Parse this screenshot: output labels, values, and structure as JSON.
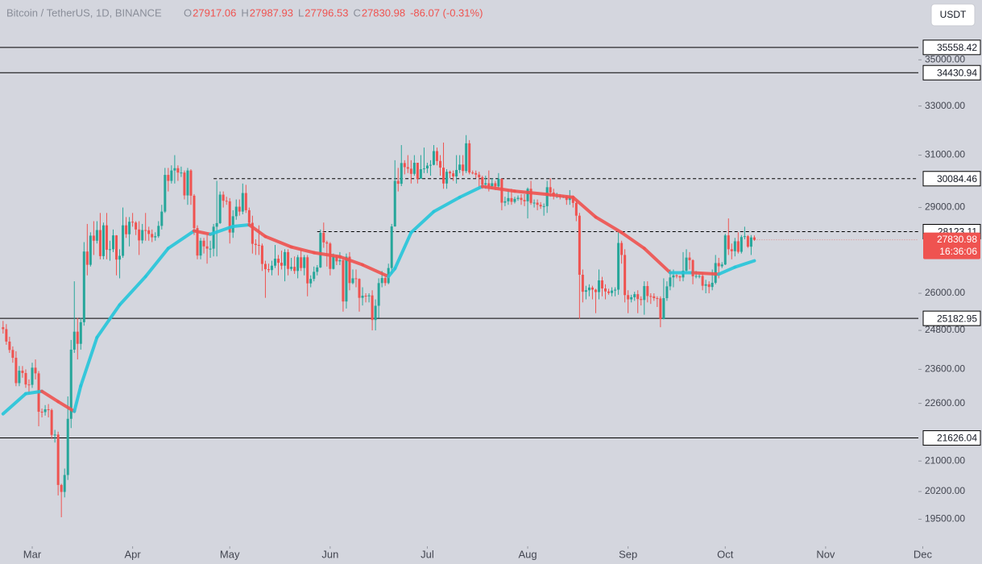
{
  "chart_data": {
    "type": "candlestick",
    "title": "Bitcoin / TetherUS, 1D, BINANCE",
    "ohlc_header": [
      {
        "name": "O",
        "text": "27917.06"
      },
      {
        "name": "H",
        "text": "27987.93"
      },
      {
        "name": "L",
        "text": "27796.53"
      },
      {
        "name": "C",
        "text": "27830.98"
      }
    ],
    "change": "-86.07 (-0.31%)",
    "currency_button": "USDT",
    "countdown": "16:36:06",
    "log_scale": true,
    "ylim": [
      18840,
      37770
    ],
    "yticks": [
      {
        "value": 35000,
        "label": "35000.00"
      },
      {
        "value": 33000,
        "label": "33000.00"
      },
      {
        "value": 31000,
        "label": "31000.00"
      },
      {
        "value": 29000,
        "label": "29000.00"
      },
      {
        "value": 26000,
        "label": "26000.00"
      },
      {
        "value": 24800,
        "label": "24800.00"
      },
      {
        "value": 23600,
        "label": "23600.00"
      },
      {
        "value": 22600,
        "label": "22600.00"
      },
      {
        "value": 21000,
        "label": "21000.00"
      },
      {
        "value": 20200,
        "label": "20200.00"
      },
      {
        "value": 19500,
        "label": "19500.00"
      }
    ],
    "xlim": [
      -0.95,
      285
    ],
    "xticks": [
      {
        "value": 9,
        "label": "Mar"
      },
      {
        "value": 40,
        "label": "Apr"
      },
      {
        "value": 70,
        "label": "May"
      },
      {
        "value": 101,
        "label": "Jun"
      },
      {
        "value": 131,
        "label": "Jul"
      },
      {
        "value": 162,
        "label": "Aug"
      },
      {
        "value": 193,
        "label": "Sep"
      },
      {
        "value": 223,
        "label": "Oct"
      },
      {
        "value": 254,
        "label": "Nov"
      },
      {
        "value": 284,
        "label": "Dec"
      }
    ],
    "up_color": "#26a69a",
    "down_color": "#ef5350",
    "open": [
      24900,
      24840,
      24450,
      24190,
      23950,
      23190,
      23560,
      23490,
      23150,
      23140,
      23650,
      23480,
      22360,
      22350,
      22430,
      22410,
      21710,
      21720,
      20370,
      20190,
      20630,
      22160,
      24200,
      24760,
      24380,
      25060,
      27420,
      26960,
      27980,
      27800,
      28180,
      27260,
      28350,
      27480,
      27500,
      27990,
      27140,
      27270,
      28350,
      28030,
      28480,
      28450,
      28200,
      27810,
      28180,
      28170,
      28040,
      27920,
      27960,
      28330,
      28850,
      30230,
      30000,
      30400,
      30490,
      30320,
      30320,
      29450,
      30400,
      29440,
      28250,
      27280,
      27800,
      27600,
      27520,
      27520,
      28300,
      28430,
      29480,
      29250,
      29230,
      28090,
      28680,
      29030,
      28850,
      29540,
      28900,
      28440,
      27690,
      27650,
      27630,
      26990,
      26810,
      26780,
      26930,
      27170,
      27030,
      26930,
      27400,
      26820,
      26890,
      26750,
      27220,
      26850,
      27220,
      26330,
      26480,
      26720,
      26870,
      28080,
      27740,
      27700,
      26820,
      27250,
      27080,
      27120,
      25730,
      27240,
      26340,
      26500,
      26480,
      25850,
      25920,
      25900,
      25930,
      25130,
      25590,
      26340,
      26510,
      26340,
      26850,
      28310,
      30000,
      29890,
      30690,
      30530,
      30470,
      30270,
      30700,
      30080,
      30450,
      30480,
      30590,
      30620,
      31160,
      30770,
      30510,
      29900,
      30350,
      30290,
      30170,
      30420,
      30630,
      30380,
      31470,
      30320,
      30300,
      30240,
      30140,
      29860,
      29910,
      29800,
      29910,
      29790,
      30080,
      29180,
      29230,
      29350,
      29210,
      29320,
      29360,
      29280,
      29230,
      29700,
      29170,
      29180,
      29100,
      29040,
      29050,
      29760,
      29560,
      29430,
      29430,
      29400,
      29410,
      29280,
      29400,
      29170,
      28700,
      26620,
      26050,
      26100,
      26190,
      26120,
      26040,
      26430,
      26160,
      26060,
      26010,
      26090,
      26120,
      27720,
      27300,
      25940,
      25800,
      25870,
      25970,
      25810,
      25780,
      26240,
      25910,
      25900,
      25840,
      25830,
      25160,
      25840,
      26230,
      26530,
      26600,
      26570,
      26530,
      26760,
      27210,
      27120,
      26570,
      26580,
      26580,
      26250,
      26300,
      26210,
      26350,
      27020,
      26910,
      26970,
      27990,
      27500,
      27430,
      27780,
      27410,
      27930,
      27960,
      27590,
      27917.06
    ],
    "high": [
      25100,
      25000,
      24600,
      24300,
      24150,
      23700,
      23700,
      23600,
      23300,
      23800,
      23900,
      23550,
      22450,
      22550,
      22580,
      22450,
      21850,
      21800,
      20400,
      20800,
      22800,
      24500,
      26400,
      25200,
      25200,
      27750,
      28400,
      28100,
      28500,
      28500,
      28800,
      28450,
      28800,
      27800,
      28200,
      28000,
      27500,
      29000,
      28650,
      28650,
      28800,
      28500,
      28500,
      28400,
      28800,
      28300,
      28200,
      28100,
      28500,
      29100,
      30500,
      30500,
      30600,
      31000,
      30600,
      30550,
      30400,
      30500,
      30450,
      29500,
      28350,
      27900,
      27900,
      28000,
      27800,
      28400,
      30000,
      29600,
      29600,
      29400,
      29350,
      28900,
      29300,
      29300,
      29900,
      29850,
      29000,
      28700,
      27850,
      28350,
      27700,
      27100,
      27000,
      27100,
      27650,
      27300,
      27450,
      27500,
      27500,
      27200,
      27250,
      27300,
      27500,
      27300,
      27300,
      26600,
      26900,
      26950,
      28200,
      28450,
      27800,
      27750,
      27350,
      27300,
      27400,
      27200,
      27350,
      27400,
      26800,
      26800,
      26500,
      26200,
      26000,
      26000,
      26100,
      25800,
      26500,
      26750,
      26550,
      27000,
      28400,
      30800,
      30500,
      31400,
      30800,
      31000,
      30800,
      31000,
      30700,
      31000,
      31300,
      30700,
      30800,
      31400,
      31300,
      31000,
      31500,
      30450,
      30400,
      30400,
      31000,
      31000,
      31000,
      31800,
      31600,
      30400,
      30400,
      30350,
      30200,
      30200,
      30400,
      30100,
      30000,
      30300,
      30100,
      29400,
      29650,
      29700,
      29400,
      29450,
      29500,
      29500,
      29750,
      30000,
      29300,
      29300,
      29200,
      29150,
      30000,
      30100,
      29700,
      29550,
      29500,
      29450,
      29450,
      29650,
      29450,
      29250,
      28800,
      26800,
      26250,
      26300,
      26250,
      26150,
      26800,
      26550,
      26300,
      26150,
      26200,
      26200,
      28150,
      27800,
      27500,
      26100,
      25950,
      26050,
      26100,
      25900,
      26400,
      26400,
      26000,
      26000,
      25900,
      25900,
      26500,
      26400,
      26800,
      26800,
      26650,
      26600,
      27400,
      27500,
      27400,
      27150,
      26750,
      26650,
      26700,
      26450,
      26400,
      26800,
      27300,
      27200,
      27050,
      28050,
      28600,
      27700,
      27900,
      28100,
      28000,
      28300,
      28000,
      28000,
      27987.93
    ],
    "low": [
      24700,
      24350,
      24100,
      23800,
      23100,
      23100,
      23350,
      23050,
      22850,
      23050,
      23300,
      21950,
      22200,
      22250,
      22200,
      21600,
      21500,
      20100,
      19550,
      20050,
      20500,
      21900,
      24100,
      23900,
      24200,
      24950,
      26600,
      26900,
      27300,
      27700,
      27150,
      27150,
      27150,
      27100,
      27400,
      26600,
      26500,
      27200,
      27900,
      27600,
      28300,
      28000,
      27300,
      27700,
      27800,
      27800,
      27750,
      27800,
      27900,
      28200,
      28800,
      29600,
      29900,
      29900,
      30000,
      30150,
      29300,
      29100,
      29100,
      28000,
      27150,
      27150,
      27350,
      27000,
      27200,
      27250,
      27250,
      28400,
      29000,
      29100,
      27700,
      27900,
      28550,
      28700,
      28750,
      28800,
      28300,
      27350,
      27300,
      27300,
      26750,
      25850,
      26700,
      26600,
      26850,
      26600,
      26800,
      26400,
      26600,
      26750,
      26650,
      26500,
      26750,
      26600,
      25900,
      26200,
      26400,
      26600,
      26850,
      27550,
      26900,
      26600,
      26800,
      26950,
      26950,
      25400,
      25500,
      26100,
      26300,
      26200,
      25400,
      25600,
      25700,
      25700,
      24800,
      24800,
      25200,
      26200,
      26250,
      26300,
      26650,
      28300,
      29600,
      29800,
      30250,
      30300,
      29900,
      30200,
      29900,
      30100,
      30300,
      30300,
      30200,
      30600,
      30600,
      30200,
      29700,
      29700,
      30100,
      30000,
      29900,
      30300,
      30200,
      30300,
      30250,
      30250,
      30100,
      29700,
      29700,
      29700,
      29600,
      29700,
      29650,
      29700,
      28900,
      29050,
      29100,
      29100,
      29150,
      29250,
      29100,
      29050,
      28600,
      29100,
      29000,
      28900,
      28950,
      28700,
      28800,
      29400,
      29300,
      29350,
      29300,
      29350,
      29100,
      29100,
      29000,
      28500,
      25170,
      25700,
      25800,
      25900,
      25800,
      25350,
      25800,
      25900,
      25800,
      25950,
      25900,
      25900,
      25950,
      27000,
      25700,
      25350,
      25700,
      25750,
      25350,
      25600,
      25300,
      25700,
      25650,
      25750,
      25550,
      24900,
      25150,
      25750,
      26100,
      26200,
      26500,
      26400,
      26400,
      26700,
      26800,
      26300,
      26500,
      26500,
      26100,
      26000,
      26000,
      26100,
      26300,
      26500,
      26850,
      26950,
      27300,
      27150,
      27250,
      27350,
      27350,
      27850,
      27550,
      27300,
      27796.53
    ],
    "close": [
      24840,
      24450,
      24190,
      23950,
      23190,
      23560,
      23490,
      23150,
      23140,
      23650,
      23480,
      22360,
      22350,
      22430,
      22410,
      21710,
      21720,
      20370,
      20190,
      20630,
      22160,
      24200,
      24760,
      24380,
      25060,
      27420,
      26960,
      27980,
      27800,
      28180,
      27260,
      28350,
      27480,
      27500,
      27990,
      27140,
      27270,
      28350,
      28030,
      28480,
      28450,
      28200,
      27810,
      28180,
      28170,
      28040,
      27920,
      27960,
      28330,
      28850,
      30230,
      30000,
      30400,
      30490,
      30320,
      30320,
      29450,
      30400,
      29440,
      28250,
      27280,
      27800,
      27600,
      27520,
      27520,
      28300,
      28430,
      29480,
      29250,
      29230,
      28090,
      28680,
      29030,
      28850,
      29540,
      28900,
      28440,
      27690,
      27650,
      27630,
      26990,
      26810,
      26780,
      26930,
      27170,
      27030,
      26930,
      27400,
      26820,
      26890,
      26750,
      27220,
      26850,
      27220,
      26330,
      26480,
      26720,
      26870,
      28080,
      27740,
      27700,
      26820,
      27250,
      27080,
      27120,
      25730,
      27240,
      26340,
      26500,
      26480,
      25850,
      25920,
      25900,
      25930,
      25130,
      25590,
      26340,
      26510,
      26340,
      26850,
      28310,
      30000,
      29890,
      30690,
      30530,
      30470,
      30270,
      30700,
      30080,
      30450,
      30480,
      30590,
      30620,
      31160,
      30770,
      30510,
      29900,
      30350,
      30290,
      30170,
      30420,
      30630,
      30380,
      31470,
      30320,
      30300,
      30240,
      30140,
      29860,
      29910,
      29800,
      29910,
      29790,
      30080,
      29180,
      29230,
      29350,
      29210,
      29320,
      29360,
      29280,
      29230,
      29700,
      29170,
      29180,
      29100,
      29040,
      29050,
      29760,
      29560,
      29430,
      29430,
      29400,
      29410,
      29280,
      29400,
      29170,
      28700,
      26620,
      26050,
      26100,
      26190,
      26120,
      26040,
      26430,
      26160,
      26060,
      26010,
      26090,
      26120,
      27720,
      27300,
      25940,
      25800,
      25870,
      25970,
      25810,
      25780,
      26240,
      25910,
      25900,
      25840,
      25830,
      25160,
      25840,
      26230,
      26530,
      26600,
      26570,
      26530,
      26760,
      27210,
      27120,
      26570,
      26580,
      26580,
      26250,
      26300,
      26210,
      26350,
      27020,
      26910,
      26970,
      27990,
      27500,
      27430,
      27780,
      27410,
      27930,
      27960,
      27590,
      27917.06,
      27830.98
    ],
    "ma": {
      "rising_color": "#26c6da",
      "falling_color": "#ef5350",
      "x": [
        0,
        7,
        12,
        17,
        22,
        24,
        29,
        36,
        44,
        51,
        59,
        64,
        71,
        76,
        81,
        89,
        96,
        104,
        111,
        119,
        121,
        126,
        133,
        141,
        148,
        158,
        168,
        176,
        183,
        191,
        198,
        206,
        213,
        221,
        226,
        232
      ],
      "values": [
        22300,
        22880,
        22950,
        22650,
        22370,
        23110,
        24580,
        25620,
        26560,
        27530,
        28150,
        28030,
        28310,
        28370,
        27950,
        27580,
        27380,
        27240,
        26960,
        26560,
        26830,
        28090,
        28850,
        29380,
        29790,
        29610,
        29490,
        29380,
        28650,
        28090,
        27530,
        26690,
        26690,
        26640,
        26880,
        27100
      ]
    },
    "levels": [
      {
        "value": 35558.42,
        "style": "solid"
      },
      {
        "value": 34430.94,
        "style": "solid"
      },
      {
        "value": 30084.46,
        "style": "dashed",
        "from": 65
      },
      {
        "value": 28123.11,
        "style": "dashed",
        "from": 97
      },
      {
        "value": 25182.95,
        "style": "solid"
      },
      {
        "value": 21626.04,
        "style": "solid"
      }
    ]
  }
}
